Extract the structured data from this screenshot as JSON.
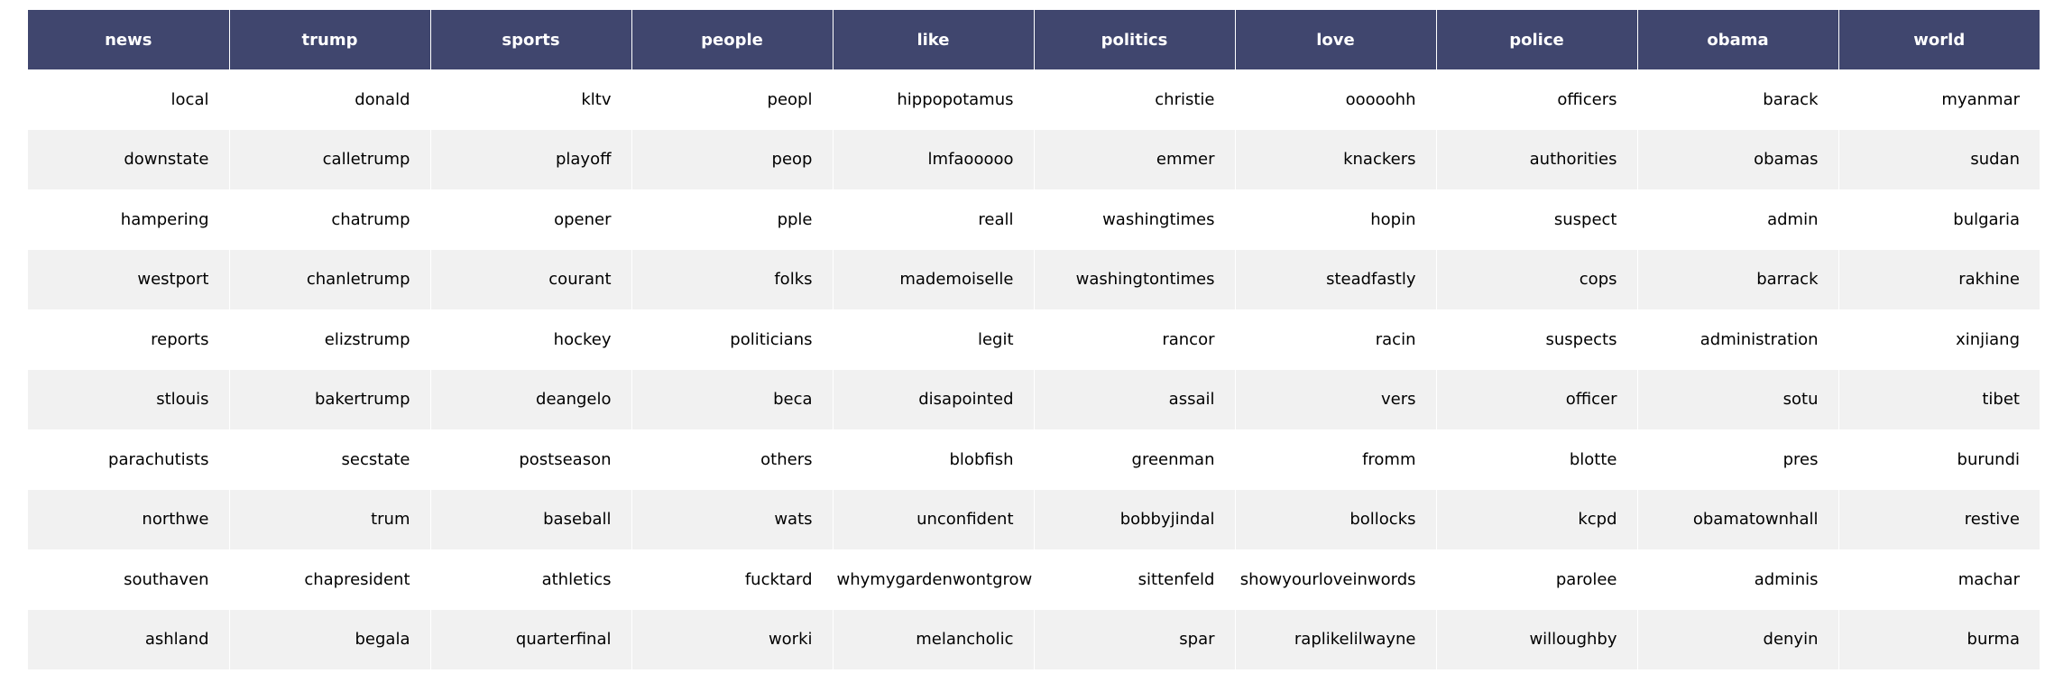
{
  "chart_data": {
    "type": "table",
    "header_color": "#40466e",
    "stripe_color": "#f1f1f1",
    "columns": [
      "news",
      "trump",
      "sports",
      "people",
      "like",
      "politics",
      "love",
      "police",
      "obama",
      "world"
    ],
    "rows": [
      [
        "local",
        "donald",
        "kltv",
        "peopl",
        "hippopotamus",
        "christie",
        "ooooohh",
        "officers",
        "barack",
        "myanmar"
      ],
      [
        "downstate",
        "calletrump",
        "playoff",
        "peop",
        "lmfaooooo",
        "emmer",
        "knackers",
        "authorities",
        "obamas",
        "sudan"
      ],
      [
        "hampering",
        "chatrump",
        "opener",
        "pple",
        "reall",
        "washingtimes",
        "hopin",
        "suspect",
        "admin",
        "bulgaria"
      ],
      [
        "westport",
        "chanletrump",
        "courant",
        "folks",
        "mademoiselle",
        "washingtontimes",
        "steadfastly",
        "cops",
        "barrack",
        "rakhine"
      ],
      [
        "reports",
        "elizstrump",
        "hockey",
        "politicians",
        "legit",
        "rancor",
        "racin",
        "suspects",
        "administration",
        "xinjiang"
      ],
      [
        "stlouis",
        "bakertrump",
        "deangelo",
        "beca",
        "disapointed",
        "assail",
        "vers",
        "officer",
        "sotu",
        "tibet"
      ],
      [
        "parachutists",
        "secstate",
        "postseason",
        "others",
        "blobfish",
        "greenman",
        "fromm",
        "blotte",
        "pres",
        "burundi"
      ],
      [
        "northwe",
        "trum",
        "baseball",
        "wats",
        "unconfident",
        "bobbyjindal",
        "bollocks",
        "kcpd",
        "obamatownhall",
        "restive"
      ],
      [
        "southaven",
        "chapresident",
        "athletics",
        "fucktard",
        "whymygardenwontgrow",
        "sittenfeld",
        "showyourloveinwords",
        "parolee",
        "adminis",
        "machar"
      ],
      [
        "ashland",
        "begala",
        "quarterfinal",
        "worki",
        "melancholic",
        "spar",
        "raplikelilwayne",
        "willoughby",
        "denyin",
        "burma"
      ]
    ]
  }
}
